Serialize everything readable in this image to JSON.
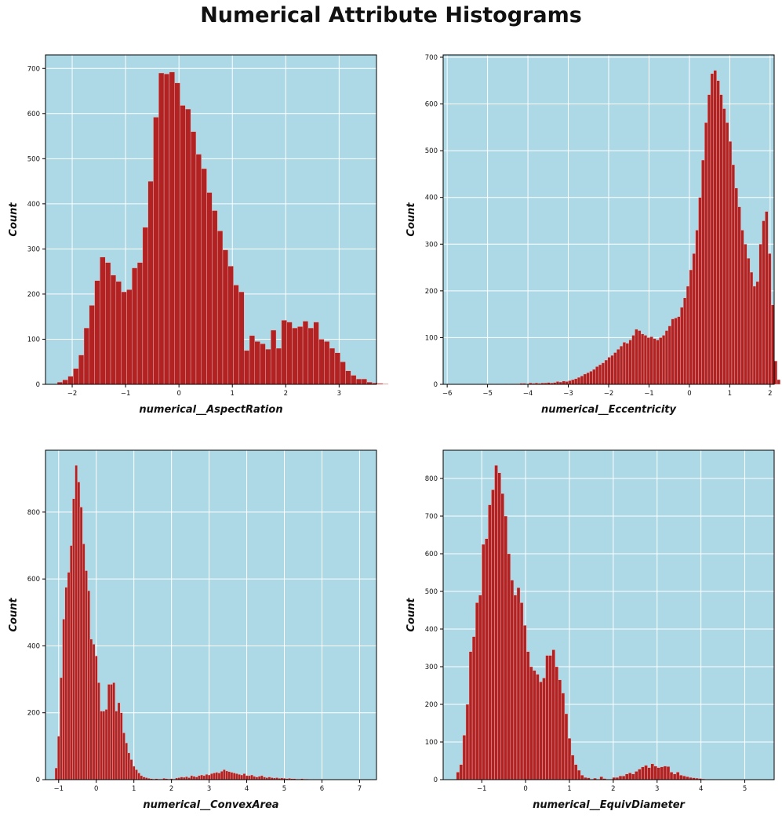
{
  "figure": {
    "title": "Numerical Attribute Histograms"
  },
  "colors": {
    "plot_bg": "#add8e6",
    "bar_fill": "#b22222",
    "bar_edge": "#e8c8c8",
    "grid": "#ffffff",
    "axis": "#000000"
  },
  "chart_data": [
    {
      "type": "bar",
      "xlabel": "numerical__AspectRation",
      "ylabel": "Count",
      "grid": true,
      "xlim": [
        -2.5,
        3.7
      ],
      "ylim": [
        0,
        730
      ],
      "xticks": [
        -2,
        -1,
        0,
        1,
        2,
        3
      ],
      "yticks": [
        0,
        100,
        200,
        300,
        400,
        500,
        600,
        700
      ],
      "bin_start": -2.28,
      "bin_width": 0.1,
      "values": [
        5,
        10,
        18,
        35,
        65,
        125,
        175,
        230,
        282,
        270,
        242,
        228,
        205,
        210,
        258,
        270,
        348,
        450,
        592,
        690,
        688,
        692,
        668,
        618,
        610,
        560,
        510,
        478,
        425,
        385,
        340,
        298,
        262,
        220,
        205,
        75,
        108,
        95,
        90,
        78,
        120,
        80,
        142,
        138,
        125,
        128,
        140,
        125,
        138,
        100,
        95,
        80,
        70,
        50,
        30,
        20,
        12,
        12,
        5,
        3,
        2,
        1
      ]
    },
    {
      "type": "bar",
      "xlabel": "numerical__Eccentricity",
      "ylabel": "Count",
      "grid": true,
      "xlim": [
        -6.1,
        2.1
      ],
      "ylim": [
        0,
        705
      ],
      "xticks": [
        -6,
        -5,
        -4,
        -3,
        -2,
        -1,
        0,
        1,
        2
      ],
      "yticks": [
        0,
        100,
        200,
        300,
        400,
        500,
        600,
        700
      ],
      "bin_start": -6.0,
      "bin_width": 0.075,
      "values": [
        1,
        0,
        0,
        0,
        0,
        0,
        0,
        0,
        0,
        0,
        0,
        0,
        0,
        0,
        1,
        0,
        1,
        0,
        0,
        1,
        0,
        1,
        1,
        1,
        2,
        2,
        1,
        3,
        2,
        3,
        2,
        3,
        3,
        4,
        3,
        4,
        6,
        5,
        7,
        6,
        8,
        10,
        12,
        15,
        18,
        22,
        25,
        28,
        32,
        38,
        42,
        46,
        52,
        58,
        62,
        68,
        75,
        82,
        90,
        88,
        95,
        105,
        118,
        115,
        108,
        105,
        100,
        102,
        98,
        95,
        100,
        105,
        115,
        125,
        140,
        142,
        145,
        165,
        185,
        210,
        245,
        280,
        330,
        400,
        480,
        560,
        620,
        665,
        672,
        650,
        620,
        590,
        560,
        520,
        470,
        420,
        380,
        330,
        300,
        270,
        240,
        210,
        220,
        300,
        350,
        370,
        280,
        170,
        50,
        10
      ]
    },
    {
      "type": "bar",
      "xlabel": "numerical__ConvexArea",
      "ylabel": "Count",
      "grid": true,
      "xlim": [
        -1.35,
        7.45
      ],
      "ylim": [
        0,
        985
      ],
      "xticks": [
        -1,
        0,
        1,
        2,
        3,
        4,
        5,
        6,
        7
      ],
      "yticks": [
        0,
        200,
        400,
        600,
        800
      ],
      "bin_start": -1.1,
      "bin_width": 0.0667,
      "values": [
        35,
        130,
        305,
        480,
        575,
        620,
        700,
        840,
        940,
        890,
        815,
        705,
        625,
        565,
        420,
        405,
        370,
        290,
        205,
        205,
        210,
        285,
        285,
        290,
        205,
        230,
        200,
        140,
        110,
        80,
        60,
        40,
        30,
        20,
        12,
        8,
        6,
        4,
        3,
        2,
        3,
        2,
        2,
        4,
        3,
        2,
        3,
        2,
        5,
        6,
        8,
        7,
        9,
        6,
        12,
        10,
        8,
        12,
        14,
        12,
        16,
        14,
        18,
        20,
        22,
        20,
        25,
        30,
        26,
        24,
        22,
        20,
        18,
        16,
        14,
        18,
        12,
        12,
        14,
        10,
        8,
        10,
        12,
        8,
        6,
        8,
        6,
        5,
        6,
        4,
        5,
        4,
        3,
        4,
        3,
        3,
        2,
        2,
        3,
        2,
        2,
        1,
        1,
        1,
        1,
        1,
        1
      ]
    },
    {
      "type": "bar",
      "xlabel": "numerical__EquivDiameter",
      "ylabel": "Count",
      "grid": true,
      "xlim": [
        -1.88,
        5.67
      ],
      "ylim": [
        0,
        875
      ],
      "xticks": [
        -1,
        0,
        1,
        2,
        3,
        4,
        5
      ],
      "yticks": [
        0,
        100,
        200,
        300,
        400,
        500,
        600,
        700,
        800
      ],
      "bin_start": -1.58,
      "bin_width": 0.0727,
      "values": [
        20,
        40,
        118,
        200,
        340,
        380,
        470,
        490,
        625,
        640,
        730,
        770,
        835,
        815,
        760,
        700,
        600,
        530,
        490,
        510,
        470,
        410,
        340,
        300,
        290,
        280,
        260,
        270,
        330,
        330,
        345,
        300,
        265,
        230,
        175,
        110,
        65,
        40,
        25,
        12,
        6,
        5,
        1,
        4,
        1,
        8,
        3,
        1,
        1,
        6,
        6,
        10,
        10,
        15,
        18,
        15,
        22,
        28,
        34,
        38,
        32,
        42,
        36,
        32,
        34,
        36,
        35,
        20,
        15,
        20,
        12,
        10,
        8,
        6,
        5,
        4,
        3,
        2,
        1,
        1,
        1,
        1,
        1
      ]
    }
  ]
}
